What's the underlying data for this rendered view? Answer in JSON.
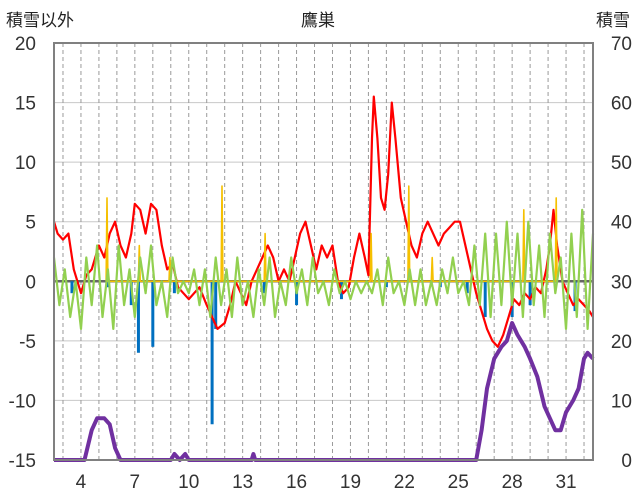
{
  "chart_data": {
    "type": "line",
    "title": "鷹巣",
    "left_axis_label": "積雪以外",
    "right_axis_label": "積雪",
    "y_left_range": [
      -15,
      20
    ],
    "y_left_ticks": [
      "20",
      "15",
      "10",
      "5",
      "0",
      "-5",
      "-10",
      "-15"
    ],
    "y_right_range": [
      0,
      70
    ],
    "y_right_ticks": [
      "70",
      "60",
      "50",
      "40",
      "30",
      "20",
      "10",
      "0"
    ],
    "x_range": [
      2.5,
      32.5
    ],
    "x_ticks": [
      "4",
      "7",
      "10",
      "13",
      "16",
      "19",
      "22",
      "25",
      "28",
      "31"
    ],
    "x_tick_values": [
      4,
      7,
      10,
      13,
      16,
      19,
      22,
      25,
      28,
      31
    ],
    "grid": true,
    "colors": {
      "temperature": "#ff0000",
      "precipitation": "#f5c000",
      "variation": "#92d050",
      "negative_bars": "#0070c0",
      "snow_depth": "#7030a0",
      "zero_line": "#666666"
    },
    "series": [
      {
        "key": "temperature",
        "axis": "left",
        "points": [
          [
            2.5,
            5
          ],
          [
            2.7,
            4
          ],
          [
            3,
            3.5
          ],
          [
            3.3,
            4
          ],
          [
            3.6,
            1
          ],
          [
            4,
            -1
          ],
          [
            4.3,
            0.5
          ],
          [
            4.6,
            1
          ],
          [
            5,
            3
          ],
          [
            5.3,
            2
          ],
          [
            5.6,
            4
          ],
          [
            5.9,
            5
          ],
          [
            6.2,
            3
          ],
          [
            6.5,
            2
          ],
          [
            6.8,
            4
          ],
          [
            7,
            6.5
          ],
          [
            7.3,
            6
          ],
          [
            7.6,
            4
          ],
          [
            7.9,
            6.5
          ],
          [
            8.2,
            6
          ],
          [
            8.5,
            3
          ],
          [
            8.8,
            1
          ],
          [
            9.1,
            1.5
          ],
          [
            9.4,
            -0.5
          ],
          [
            9.7,
            -1
          ],
          [
            10,
            -1.5
          ],
          [
            10.3,
            -1
          ],
          [
            10.6,
            -0.5
          ],
          [
            11,
            -2
          ],
          [
            11.3,
            -3
          ],
          [
            11.6,
            -4
          ],
          [
            12,
            -3.5
          ],
          [
            12.3,
            -2
          ],
          [
            12.6,
            0
          ],
          [
            12.9,
            -1
          ],
          [
            13.2,
            -2
          ],
          [
            13.5,
            0
          ],
          [
            13.8,
            1
          ],
          [
            14.1,
            2
          ],
          [
            14.4,
            3
          ],
          [
            14.7,
            2
          ],
          [
            15,
            0
          ],
          [
            15.3,
            1
          ],
          [
            15.6,
            0
          ],
          [
            15.9,
            2
          ],
          [
            16.2,
            4
          ],
          [
            16.5,
            5
          ],
          [
            16.8,
            3
          ],
          [
            17.1,
            1
          ],
          [
            17.4,
            3
          ],
          [
            17.7,
            2
          ],
          [
            18,
            3
          ],
          [
            18.3,
            0
          ],
          [
            18.6,
            -1
          ],
          [
            18.9,
            -0.5
          ],
          [
            19.2,
            2
          ],
          [
            19.5,
            4
          ],
          [
            19.8,
            2
          ],
          [
            20,
            0.5
          ],
          [
            20.2,
            12
          ],
          [
            20.3,
            15.5
          ],
          [
            20.5,
            12
          ],
          [
            20.7,
            7
          ],
          [
            20.9,
            6
          ],
          [
            21.1,
            9
          ],
          [
            21.3,
            15
          ],
          [
            21.5,
            12
          ],
          [
            21.8,
            7
          ],
          [
            22.1,
            5
          ],
          [
            22.4,
            3
          ],
          [
            22.7,
            2
          ],
          [
            23,
            4
          ],
          [
            23.3,
            5
          ],
          [
            23.6,
            4
          ],
          [
            23.9,
            3
          ],
          [
            24.2,
            4
          ],
          [
            24.5,
            4.5
          ],
          [
            24.8,
            5
          ],
          [
            25.1,
            5
          ],
          [
            25.4,
            3
          ],
          [
            25.7,
            1
          ],
          [
            26,
            -1
          ],
          [
            26.3,
            -2.5
          ],
          [
            26.6,
            -4
          ],
          [
            26.9,
            -5
          ],
          [
            27.2,
            -5.5
          ],
          [
            27.5,
            -4.5
          ],
          [
            27.8,
            -3
          ],
          [
            28.1,
            -1.5
          ],
          [
            28.4,
            -2
          ],
          [
            28.7,
            -1
          ],
          [
            29,
            -1.5
          ],
          [
            29.3,
            -0.5
          ],
          [
            29.6,
            -1
          ],
          [
            29.9,
            1
          ],
          [
            30.1,
            3
          ],
          [
            30.3,
            6
          ],
          [
            30.5,
            3
          ],
          [
            30.8,
            0
          ],
          [
            31.1,
            -1
          ],
          [
            31.4,
            -2
          ],
          [
            31.7,
            -1.5
          ],
          [
            32,
            -2
          ],
          [
            32.3,
            -2.5
          ],
          [
            32.5,
            -3
          ]
        ]
      },
      {
        "key": "precipitation",
        "axis": "left",
        "points": [
          [
            5.4,
            0
          ],
          [
            5.45,
            7
          ],
          [
            5.5,
            0
          ],
          [
            7.2,
            0
          ],
          [
            7.25,
            3
          ],
          [
            7.3,
            0
          ],
          [
            8.9,
            0
          ],
          [
            8.95,
            2
          ],
          [
            9,
            0
          ],
          [
            11.8,
            0
          ],
          [
            11.85,
            8
          ],
          [
            11.9,
            0
          ],
          [
            14.2,
            0
          ],
          [
            14.25,
            4
          ],
          [
            14.3,
            0
          ],
          [
            20.1,
            0
          ],
          [
            20.15,
            4
          ],
          [
            20.2,
            0
          ],
          [
            22.2,
            0
          ],
          [
            22.25,
            8
          ],
          [
            22.3,
            0
          ],
          [
            23.5,
            0
          ],
          [
            23.55,
            2
          ],
          [
            23.6,
            0
          ],
          [
            28.6,
            0
          ],
          [
            28.65,
            6
          ],
          [
            28.7,
            0
          ],
          [
            30.4,
            0
          ],
          [
            30.45,
            7
          ],
          [
            30.5,
            0
          ]
        ]
      },
      {
        "key": "variation",
        "axis": "left",
        "points": [
          [
            2.5,
            2
          ],
          [
            2.8,
            -2
          ],
          [
            3.1,
            1
          ],
          [
            3.4,
            -3
          ],
          [
            3.7,
            0
          ],
          [
            4,
            -4
          ],
          [
            4.3,
            2
          ],
          [
            4.6,
            -2
          ],
          [
            4.9,
            3
          ],
          [
            5.2,
            -3
          ],
          [
            5.5,
            1
          ],
          [
            5.8,
            -4
          ],
          [
            6.1,
            3
          ],
          [
            6.4,
            -2
          ],
          [
            6.7,
            1
          ],
          [
            7,
            -3
          ],
          [
            7.3,
            2
          ],
          [
            7.6,
            -1
          ],
          [
            7.9,
            3
          ],
          [
            8.2,
            -2
          ],
          [
            8.5,
            0
          ],
          [
            8.8,
            -3
          ],
          [
            9.1,
            2
          ],
          [
            9.4,
            -1
          ],
          [
            9.7,
            0
          ],
          [
            10,
            -1
          ],
          [
            10.3,
            1
          ],
          [
            10.6,
            -2
          ],
          [
            10.9,
            1
          ],
          [
            11.2,
            -3
          ],
          [
            11.5,
            2
          ],
          [
            11.8,
            -2
          ],
          [
            12.1,
            1
          ],
          [
            12.4,
            -3
          ],
          [
            12.7,
            2
          ],
          [
            13,
            -2
          ],
          [
            13.3,
            0
          ],
          [
            13.6,
            -3
          ],
          [
            13.9,
            1
          ],
          [
            14.2,
            -2
          ],
          [
            14.5,
            2
          ],
          [
            14.8,
            -3
          ],
          [
            15.1,
            0
          ],
          [
            15.4,
            -2
          ],
          [
            15.7,
            2
          ],
          [
            16,
            -1
          ],
          [
            16.3,
            1
          ],
          [
            16.6,
            -2
          ],
          [
            16.9,
            2
          ],
          [
            17.2,
            -1
          ],
          [
            17.5,
            0
          ],
          [
            17.8,
            -2
          ],
          [
            18.1,
            1
          ],
          [
            18.4,
            -1
          ],
          [
            18.7,
            0
          ],
          [
            19,
            -1.5
          ],
          [
            19.3,
            0
          ],
          [
            19.6,
            -1
          ],
          [
            19.9,
            0
          ],
          [
            20.2,
            -1
          ],
          [
            20.5,
            1
          ],
          [
            20.8,
            -2
          ],
          [
            21.1,
            2
          ],
          [
            21.4,
            -1
          ],
          [
            21.7,
            0
          ],
          [
            22,
            -2
          ],
          [
            22.3,
            1
          ],
          [
            22.6,
            -2
          ],
          [
            22.9,
            1
          ],
          [
            23.2,
            -2
          ],
          [
            23.5,
            0
          ],
          [
            23.8,
            -2
          ],
          [
            24.1,
            1
          ],
          [
            24.4,
            -1
          ],
          [
            24.7,
            2
          ],
          [
            25,
            -1
          ],
          [
            25.3,
            0
          ],
          [
            25.6,
            -2
          ],
          [
            25.9,
            3
          ],
          [
            26.2,
            -2
          ],
          [
            26.5,
            4
          ],
          [
            26.8,
            -3
          ],
          [
            27.1,
            4
          ],
          [
            27.4,
            -2
          ],
          [
            27.7,
            5
          ],
          [
            28,
            -2
          ],
          [
            28.3,
            4
          ],
          [
            28.6,
            -3
          ],
          [
            28.9,
            5
          ],
          [
            29.2,
            -2
          ],
          [
            29.5,
            3
          ],
          [
            29.8,
            -3
          ],
          [
            30.1,
            4
          ],
          [
            30.4,
            -1
          ],
          [
            30.7,
            2
          ],
          [
            31,
            -4
          ],
          [
            31.3,
            4
          ],
          [
            31.6,
            -3
          ],
          [
            31.9,
            6
          ],
          [
            32.2,
            -4
          ],
          [
            32.5,
            4
          ]
        ]
      },
      {
        "key": "negative_bars",
        "axis": "left",
        "bars": [
          [
            3.5,
            -1
          ],
          [
            5.5,
            -0.5
          ],
          [
            6.8,
            -2
          ],
          [
            7.2,
            -6
          ],
          [
            8,
            -5.5
          ],
          [
            9.2,
            -1
          ],
          [
            11.3,
            -12
          ],
          [
            11.5,
            -4
          ],
          [
            14.2,
            -1
          ],
          [
            16,
            -2
          ],
          [
            18.5,
            -1.5
          ],
          [
            21,
            -0.5
          ],
          [
            24,
            -0.5
          ],
          [
            25.5,
            -1
          ],
          [
            26.5,
            -3
          ],
          [
            28,
            -3
          ],
          [
            29,
            -2
          ],
          [
            31.5,
            -2.5
          ]
        ]
      },
      {
        "key": "snow_depth",
        "axis": "right",
        "points": [
          [
            2.5,
            0
          ],
          [
            4.2,
            0
          ],
          [
            4.6,
            5
          ],
          [
            4.9,
            7
          ],
          [
            5.3,
            7
          ],
          [
            5.6,
            6
          ],
          [
            5.9,
            2
          ],
          [
            6.2,
            0
          ],
          [
            9,
            0
          ],
          [
            9.2,
            1
          ],
          [
            9.5,
            0
          ],
          [
            9.8,
            1
          ],
          [
            10,
            0
          ],
          [
            13.5,
            0
          ],
          [
            13.6,
            1
          ],
          [
            13.7,
            0
          ],
          [
            26,
            0
          ],
          [
            26.3,
            5
          ],
          [
            26.6,
            12
          ],
          [
            27,
            17
          ],
          [
            27.4,
            19
          ],
          [
            27.7,
            20
          ],
          [
            28,
            23
          ],
          [
            28.3,
            21
          ],
          [
            28.7,
            19
          ],
          [
            29,
            17
          ],
          [
            29.4,
            14
          ],
          [
            29.8,
            9
          ],
          [
            30.1,
            7
          ],
          [
            30.4,
            5
          ],
          [
            30.7,
            5
          ],
          [
            31,
            8
          ],
          [
            31.4,
            10
          ],
          [
            31.7,
            12
          ],
          [
            32,
            17
          ],
          [
            32.2,
            18
          ],
          [
            32.5,
            17
          ]
        ]
      }
    ]
  }
}
